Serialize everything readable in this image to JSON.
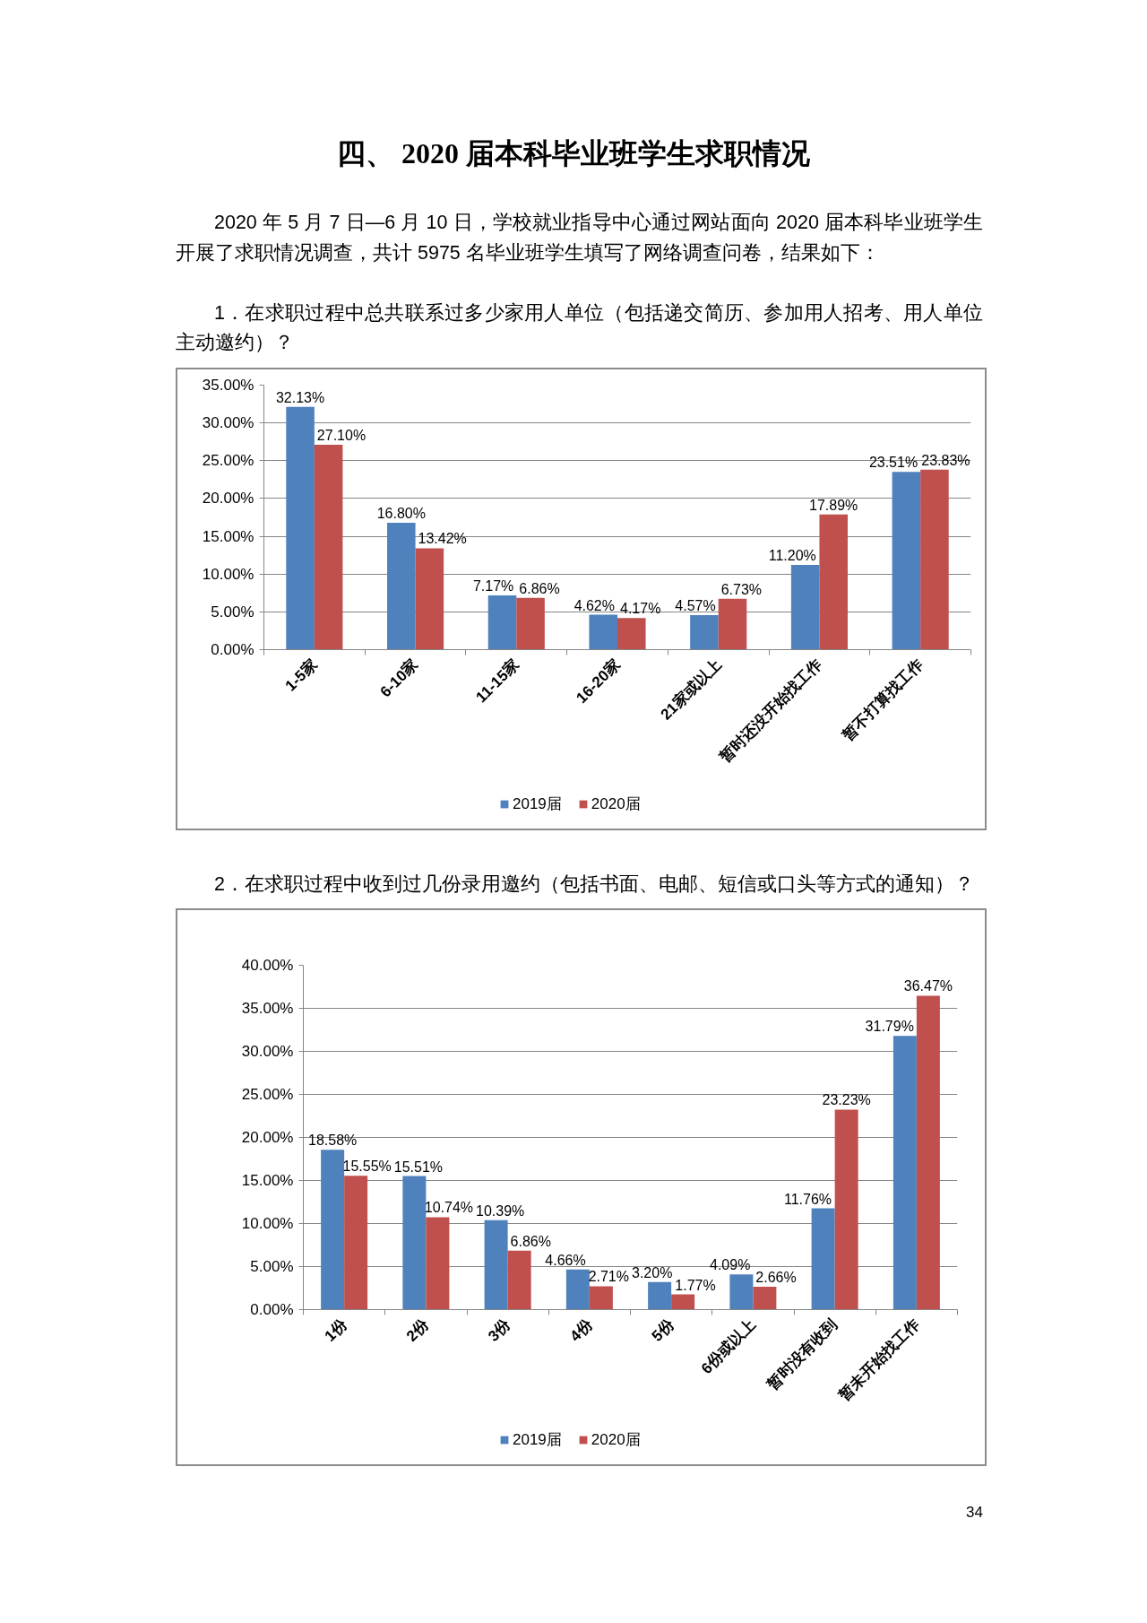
{
  "chart_data": [
    {
      "type": "bar",
      "title": "1．在求职过程中总共联系过多少家用人单位（包括递交简历、参加用人招考、用人单位主动邀约）？",
      "annotations": [
        "四、 2020 届本科毕业班学生求职情况",
        "2020 年 5 月 7 日—6 月 10 日，学校就业指导中心通过网站面向 2020 届本科毕业班学生开展了求职情况调查，共计 5975 名毕业班学生填写了网络调查问卷，结果如下："
      ],
      "categories": [
        "1-5家",
        "6-10家",
        "11-15家",
        "16-20家",
        "21家或以上",
        "暂时还没开始找工作",
        "暂不打算找工作"
      ],
      "series": [
        {
          "name": "2019届",
          "color": "#4f81bd",
          "values": [
            32.13,
            16.8,
            7.17,
            4.62,
            4.57,
            11.2,
            23.51
          ],
          "value_labels": [
            "32.13%",
            "16.80%",
            "7.17%",
            "4.62%",
            "4.57%",
            "11.20%",
            "23.51%"
          ]
        },
        {
          "name": "2020届",
          "color": "#c0504d",
          "values": [
            27.1,
            13.42,
            6.86,
            4.17,
            6.73,
            17.89,
            23.83
          ],
          "value_labels": [
            "27.10%",
            "13.42%",
            "6.86%",
            "4.17%",
            "6.73%",
            "17.89%",
            "23.83%"
          ]
        }
      ],
      "ylim": [
        0,
        35
      ],
      "yticks": [
        {
          "value": 0,
          "label": "0.00%"
        },
        {
          "value": 5,
          "label": "5.00%"
        },
        {
          "value": 10,
          "label": "10.00%"
        },
        {
          "value": 15,
          "label": "15.00%"
        },
        {
          "value": 20,
          "label": "20.00%"
        },
        {
          "value": 25,
          "label": "25.00%"
        },
        {
          "value": 30,
          "label": "30.00%"
        },
        {
          "value": 35,
          "label": "35.00%"
        }
      ],
      "grid": "y",
      "legend": "bottom"
    },
    {
      "type": "bar",
      "title": "2．在求职过程中收到过几份录用邀约（包括书面、电邮、短信或口头等方式的通知）？",
      "annotations": [
        "34"
      ],
      "categories": [
        "1份",
        "2份",
        "3份",
        "4份",
        "5份",
        "6份或以上",
        "暂时没有收到",
        "暂未开始找工作"
      ],
      "series": [
        {
          "name": "2019届",
          "color": "#4f81bd",
          "values": [
            18.58,
            15.51,
            10.39,
            4.66,
            3.2,
            4.09,
            11.76,
            31.79
          ],
          "value_labels": [
            "18.58%",
            "15.51%",
            "10.39%",
            "4.66%",
            "3.20%",
            "4.09%",
            "11.76%",
            "31.79%"
          ]
        },
        {
          "name": "2020届",
          "color": "#c0504d",
          "values": [
            15.55,
            10.74,
            6.86,
            2.71,
            1.77,
            2.66,
            23.23,
            36.47
          ],
          "value_labels": [
            "15.55%",
            "10.74%",
            "6.86%",
            "2.71%",
            "1.77%",
            "2.66%",
            "23.23%",
            "36.47%"
          ]
        }
      ],
      "ylim": [
        0,
        40
      ],
      "yticks": [
        {
          "value": 0,
          "label": "0.00%"
        },
        {
          "value": 5,
          "label": "5.00%"
        },
        {
          "value": 10,
          "label": "10.00%"
        },
        {
          "value": 15,
          "label": "15.00%"
        },
        {
          "value": 20,
          "label": "20.00%"
        },
        {
          "value": 25,
          "label": "25.00%"
        },
        {
          "value": 30,
          "label": "30.00%"
        },
        {
          "value": 35,
          "label": "35.00%"
        },
        {
          "value": 40,
          "label": "40.00%"
        }
      ],
      "grid": "y",
      "legend": "bottom"
    }
  ]
}
